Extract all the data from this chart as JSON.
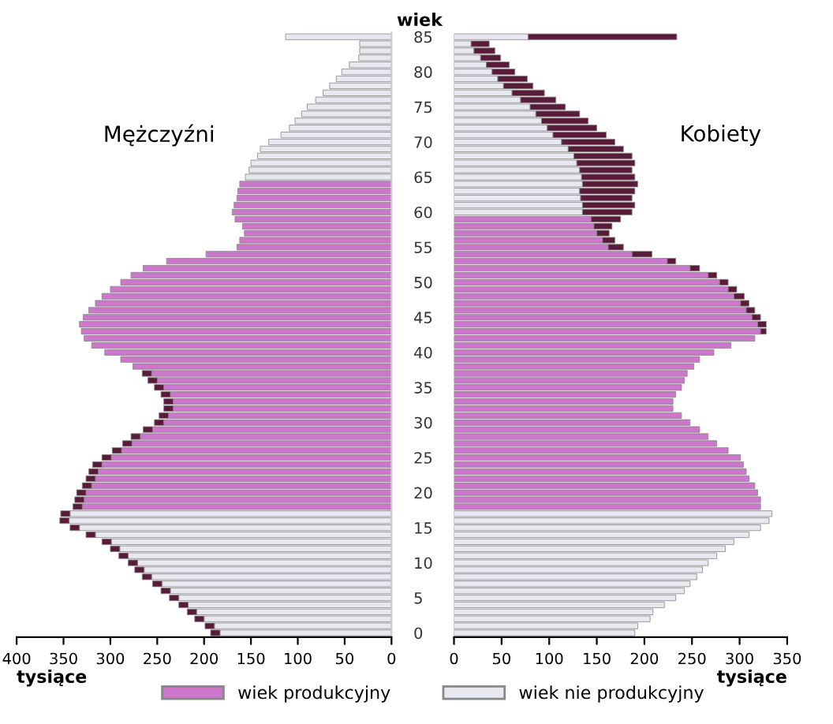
{
  "chart_data": [
    {
      "type": "bar",
      "orientation": "horizontal",
      "stacked": true,
      "title": "Mężczyźni",
      "xlabel": "tysiące",
      "ylabel": "wiek",
      "categories": [
        "85",
        null,
        null,
        null,
        null,
        "80",
        null,
        null,
        null,
        null,
        "75",
        null,
        null,
        null,
        null,
        "70",
        null,
        null,
        null,
        null,
        "65",
        null,
        null,
        null,
        null,
        "60",
        null,
        null,
        null,
        null,
        "55",
        null,
        null,
        null,
        null,
        "50",
        null,
        null,
        null,
        null,
        "45",
        null,
        null,
        null,
        null,
        "40",
        null,
        null,
        null,
        null,
        "35",
        null,
        null,
        null,
        null,
        "30",
        null,
        null,
        null,
        null,
        "25",
        null,
        null,
        null,
        null,
        "20",
        null,
        null,
        null,
        null,
        "15",
        null,
        null,
        null,
        null,
        "10",
        null,
        null,
        null,
        null,
        "5",
        null,
        null,
        null,
        null,
        "0"
      ],
      "series": [
        {
          "name": "wiek produkcyjny",
          "color": "#cc77cc",
          "values": [
            null,
            null,
            null,
            null,
            null,
            null,
            null,
            null,
            null,
            null,
            null,
            null,
            null,
            null,
            null,
            null,
            null,
            null,
            null,
            null,
            null,
            162,
            164,
            165,
            168,
            170,
            167,
            159,
            157,
            162,
            165,
            198,
            240,
            265,
            278,
            289,
            300,
            309,
            316,
            323,
            329,
            333,
            331,
            328,
            320,
            306,
            289,
            276,
            256,
            250,
            243,
            236,
            233,
            233,
            238,
            243,
            255,
            268,
            277,
            288,
            299,
            309,
            313,
            316,
            320,
            326,
            328,
            330,
            null,
            null,
            null,
            null,
            null,
            null,
            null,
            null,
            null,
            null,
            null,
            null,
            null,
            null,
            null,
            null,
            null,
            null
          ]
        },
        {
          "name": "wiek nie produkcyjny",
          "color": "#e8e8f0",
          "values": [
            113,
            34,
            34,
            35,
            45,
            53,
            59,
            66,
            73,
            81,
            90,
            96,
            103,
            109,
            118,
            131,
            140,
            143,
            150,
            152,
            156,
            null,
            null,
            null,
            null,
            null,
            null,
            null,
            null,
            null,
            null,
            null,
            null,
            null,
            null,
            null,
            null,
            null,
            null,
            null,
            null,
            null,
            null,
            null,
            null,
            null,
            null,
            null,
            null,
            null,
            null,
            null,
            null,
            null,
            null,
            null,
            null,
            null,
            null,
            null,
            null,
            null,
            null,
            null,
            null,
            null,
            null,
            null,
            343,
            344,
            333,
            316,
            299,
            290,
            281,
            271,
            264,
            256,
            245,
            236,
            227,
            217,
            208,
            200,
            189,
            183
          ]
        },
        {
          "color": "#5a1a3a",
          "values": [
            null,
            null,
            null,
            null,
            null,
            null,
            null,
            null,
            null,
            null,
            null,
            null,
            null,
            null,
            null,
            null,
            null,
            null,
            null,
            null,
            null,
            null,
            null,
            null,
            null,
            null,
            null,
            null,
            null,
            null,
            null,
            null,
            null,
            null,
            null,
            null,
            null,
            null,
            null,
            null,
            null,
            null,
            null,
            null,
            null,
            null,
            null,
            null,
            10,
            10,
            10,
            10,
            10,
            10,
            10,
            10,
            10,
            10,
            10,
            10,
            10,
            10,
            10,
            10,
            10,
            10,
            10,
            10,
            10,
            10,
            10,
            10,
            10,
            10,
            10,
            10,
            10,
            10,
            10,
            10,
            10,
            10,
            10,
            10,
            10,
            10
          ]
        }
      ],
      "xlim": [
        400,
        0
      ],
      "xticks": [
        400,
        350,
        300,
        250,
        200,
        150,
        100,
        50,
        0
      ],
      "legend": "bottom"
    },
    {
      "type": "bar",
      "orientation": "horizontal",
      "stacked": true,
      "title": "Kobiety",
      "xlabel": "tysiące",
      "tick_labels": "x",
      "categories": [
        "85",
        null,
        null,
        null,
        null,
        "80",
        null,
        null,
        null,
        null,
        "75",
        null,
        null,
        null,
        null,
        "70",
        null,
        null,
        null,
        null,
        "65",
        null,
        null,
        null,
        null,
        "60",
        null,
        null,
        null,
        null,
        "55",
        null,
        null,
        null,
        null,
        "50",
        null,
        null,
        null,
        null,
        "45",
        null,
        null,
        null,
        null,
        "40",
        null,
        null,
        null,
        null,
        "35",
        null,
        null,
        null,
        null,
        "30",
        null,
        null,
        null,
        null,
        "25",
        null,
        null,
        null,
        null,
        "20",
        null,
        null,
        null,
        null,
        "15",
        null,
        null,
        null,
        null,
        "10",
        null,
        null,
        null,
        null,
        "5",
        null,
        null,
        null,
        null,
        "0"
      ],
      "series": [
        {
          "color": "#cc77cc",
          "values": [
            null,
            null,
            null,
            null,
            null,
            null,
            null,
            null,
            null,
            null,
            null,
            null,
            null,
            null,
            null,
            null,
            null,
            null,
            null,
            null,
            null,
            null,
            null,
            null,
            null,
            null,
            144,
            147,
            150,
            156,
            162,
            187,
            224,
            248,
            267,
            279,
            288,
            294,
            301,
            307,
            313,
            319,
            322,
            316,
            291,
            273,
            258,
            252,
            245,
            242,
            239,
            233,
            230,
            230,
            239,
            248,
            258,
            267,
            276,
            288,
            301,
            304,
            307,
            310,
            316,
            319,
            322,
            322,
            null,
            null,
            null,
            null,
            null,
            null,
            null,
            null,
            null,
            null,
            null,
            null,
            null,
            null,
            null,
            null,
            null,
            null
          ]
        },
        {
          "color": "#e8e8f0",
          "values": [
            78,
            18,
            21,
            28,
            34,
            40,
            46,
            52,
            61,
            70,
            80,
            86,
            92,
            98,
            104,
            113,
            120,
            126,
            129,
            132,
            134,
            135,
            132,
            133,
            135,
            135,
            null,
            null,
            null,
            null,
            null,
            null,
            null,
            null,
            null,
            null,
            null,
            null,
            null,
            null,
            null,
            null,
            null,
            null,
            null,
            null,
            null,
            null,
            null,
            null,
            null,
            null,
            null,
            null,
            null,
            null,
            null,
            null,
            null,
            null,
            null,
            null,
            null,
            null,
            null,
            null,
            null,
            null,
            334,
            331,
            322,
            310,
            294,
            285,
            276,
            267,
            261,
            255,
            248,
            242,
            233,
            221,
            209,
            206,
            193,
            190
          ]
        },
        {
          "color": "#5a1a3a",
          "values": [
            156,
            19,
            22,
            21,
            24,
            24,
            31,
            31,
            34,
            37,
            37,
            46,
            49,
            52,
            56,
            56,
            58,
            61,
            61,
            55,
            56,
            58,
            58,
            54,
            55,
            52,
            31,
            19,
            13,
            13,
            16,
            21,
            9,
            10,
            9,
            9,
            9,
            11,
            9,
            9,
            9,
            9,
            6,
            null,
            null,
            null,
            null,
            null,
            null,
            null,
            null,
            null,
            null,
            null,
            null,
            null,
            null,
            null,
            null,
            null,
            null,
            null,
            null,
            null,
            null,
            null,
            null,
            null,
            null,
            null,
            null,
            null,
            null,
            null,
            null,
            null,
            null,
            null,
            null,
            null,
            null,
            null,
            null,
            null,
            null,
            null
          ]
        }
      ],
      "xlim": [
        0,
        350
      ],
      "xticks": [
        0,
        50,
        100,
        150,
        200,
        250,
        300,
        350
      ]
    }
  ]
}
